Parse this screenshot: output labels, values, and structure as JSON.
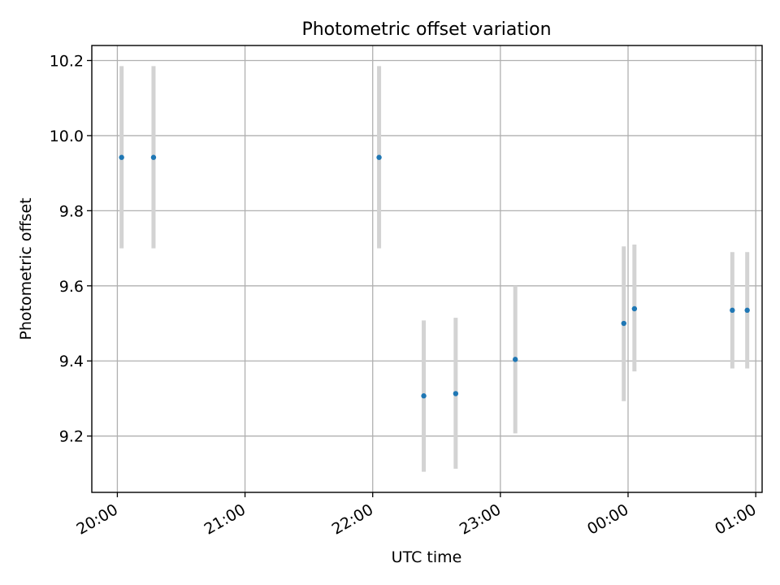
{
  "chart_data": {
    "type": "scatter",
    "title": "Photometric offset variation",
    "xlabel": "UTC time",
    "ylabel": "Photometric offset",
    "x_format": "HH:MM",
    "xlim": [
      "19:48",
      "01:03"
    ],
    "ylim": [
      9.05,
      10.24
    ],
    "x_ticks": [
      "20:00",
      "21:00",
      "22:00",
      "23:00",
      "00:00",
      "01:00"
    ],
    "y_ticks": [
      9.2,
      9.4,
      9.6,
      9.8,
      10.0,
      10.2
    ],
    "grid": true,
    "point_color": "#1f77b4",
    "errorbar_color": "#d3d3d3",
    "points": [
      {
        "time": "20:02",
        "y": 9.942,
        "ylow": 9.7,
        "yhigh": 10.185
      },
      {
        "time": "20:17",
        "y": 9.942,
        "ylow": 9.7,
        "yhigh": 10.185
      },
      {
        "time": "22:03",
        "y": 9.942,
        "ylow": 9.7,
        "yhigh": 10.185
      },
      {
        "time": "22:24",
        "y": 9.307,
        "ylow": 9.105,
        "yhigh": 9.508
      },
      {
        "time": "22:39",
        "y": 9.313,
        "ylow": 9.113,
        "yhigh": 9.515
      },
      {
        "time": "23:07",
        "y": 9.404,
        "ylow": 9.207,
        "yhigh": 9.6
      },
      {
        "time": "23:58",
        "y": 9.5,
        "ylow": 9.293,
        "yhigh": 9.705
      },
      {
        "time": "00:03",
        "y": 9.539,
        "ylow": 9.372,
        "yhigh": 9.71
      },
      {
        "time": "00:49",
        "y": 9.535,
        "ylow": 9.38,
        "yhigh": 9.69
      },
      {
        "time": "00:56",
        "y": 9.535,
        "ylow": 9.38,
        "yhigh": 9.69
      }
    ]
  }
}
